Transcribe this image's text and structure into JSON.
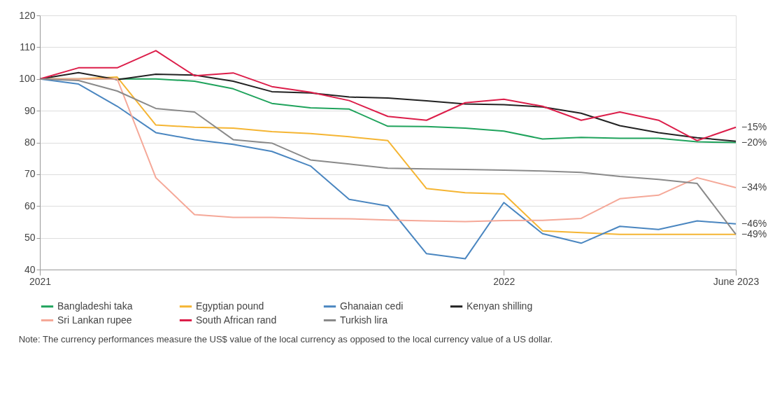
{
  "chart_data": {
    "type": "line",
    "categories": [
      "2021",
      null,
      null,
      null,
      null,
      null,
      null,
      null,
      null,
      null,
      null,
      null,
      "2022",
      null,
      null,
      null,
      null,
      null,
      "June 2023"
    ],
    "series": [
      {
        "name": "Bangladeshi taka",
        "color": "#1fa35c",
        "values": [
          100,
          100,
          100,
          100,
          99.3,
          96.9,
          92.3,
          90.9,
          90.5,
          85.1,
          85,
          84.5,
          83.6,
          81.1,
          81.6,
          81.3,
          81.3,
          80.2,
          80
        ]
      },
      {
        "name": "Egyptian pound",
        "color": "#f5b533",
        "values": [
          100,
          100,
          100.6,
          85.5,
          84.8,
          84.5,
          83.4,
          82.8,
          81.8,
          80.6,
          65.5,
          64.2,
          63.8,
          52.2,
          51.6,
          51.1,
          51.1,
          51.1,
          51.1
        ]
      },
      {
        "name": "Ghanaian cedi",
        "color": "#4a86c0",
        "values": [
          100,
          98.4,
          91.4,
          83.1,
          80.9,
          79.4,
          77.2,
          72.6,
          62.1,
          60,
          45,
          43.4,
          61.1,
          51.3,
          48.3,
          53.6,
          52.6,
          55.3,
          54.4
        ]
      },
      {
        "name": "Kenyan shilling",
        "color": "#222222",
        "values": [
          100,
          102,
          99.8,
          101.5,
          101.2,
          99.3,
          96,
          95.6,
          94.3,
          94,
          93.1,
          92.1,
          91.9,
          91.2,
          89.2,
          85.3,
          83.1,
          81.5,
          80.4
        ]
      },
      {
        "name": "Sri Lankan rupee",
        "color": "#f5a898",
        "values": [
          100,
          100,
          100,
          68.9,
          57.3,
          56.4,
          56.4,
          56.1,
          56,
          55.6,
          55.3,
          55.1,
          55.4,
          55.5,
          56.1,
          62.3,
          63.4,
          68.9,
          65.8
        ]
      },
      {
        "name": "South African rand",
        "color": "#dc1e4a",
        "values": [
          100,
          103.5,
          103.5,
          108.9,
          101,
          101.9,
          97.6,
          95.8,
          93.2,
          88.2,
          87,
          92.5,
          93.6,
          91.4,
          87,
          89.6,
          87,
          80.6,
          84.8
        ]
      },
      {
        "name": "Turkish lira",
        "color": "#8a8a8a",
        "values": [
          100,
          99.5,
          96.2,
          90.7,
          89.6,
          80.9,
          79.8,
          74.5,
          73.2,
          71.9,
          71.7,
          71.5,
          71.3,
          71,
          70.6,
          69.3,
          68.4,
          67.1,
          51.1
        ]
      }
    ],
    "ylim": [
      40,
      120
    ],
    "yticks": [
      40,
      50,
      60,
      70,
      80,
      90,
      100,
      110,
      120
    ],
    "grid": "y",
    "legend": "bottom",
    "marker": "none",
    "line_style": "solid",
    "annotations": [
      {
        "text": "−15%",
        "x": "June 2023",
        "y": 84.8
      },
      {
        "text": "−20%",
        "x": "June 2023",
        "y": 80
      },
      {
        "text": "−34%",
        "x": "June 2023",
        "y": 65.8
      },
      {
        "text": "−46%",
        "x": "June 2023",
        "y": 54.4
      },
      {
        "text": "−49%",
        "x": "June 2023",
        "y": 51.1
      },
      "Note: The currency performances measure the US$ value of the local currency as opposed to the local currency value of a US dollar."
    ]
  }
}
